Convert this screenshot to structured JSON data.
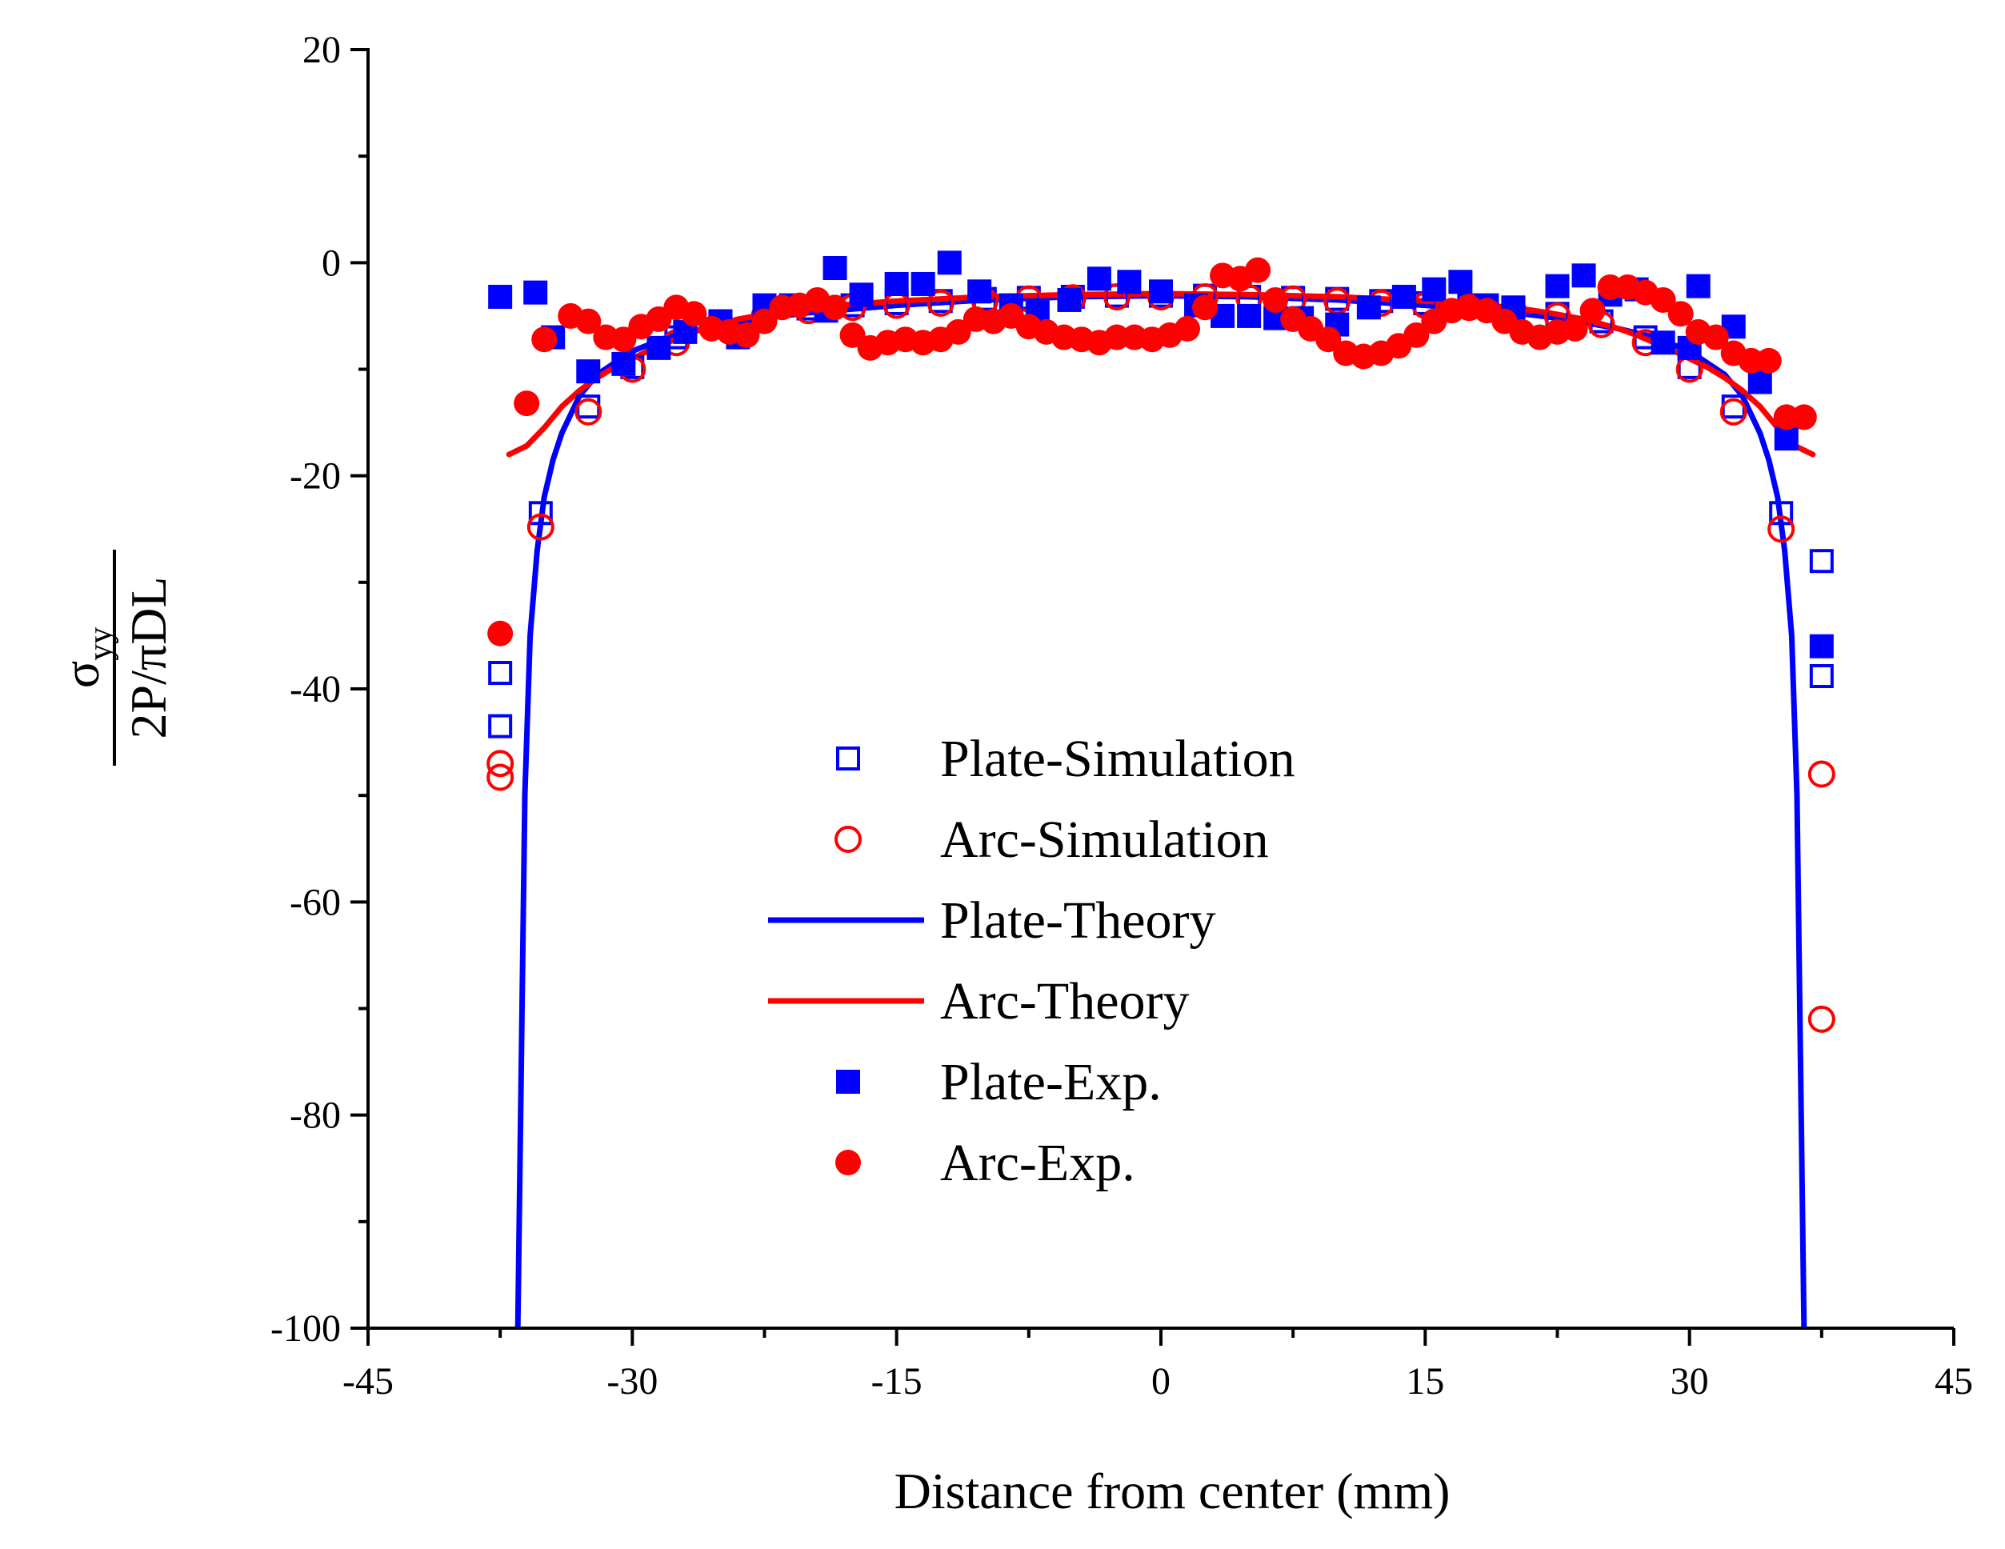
{
  "chart_data": {
    "type": "scatter",
    "title": "",
    "xlabel": "Distance from center (mm)",
    "ylabel": {
      "sigma": "σ",
      "sub": "yy",
      "denominator": "2P/πDL"
    },
    "xlim": [
      -45,
      45
    ],
    "ylim": [
      -100,
      20
    ],
    "xticks": [
      -45,
      -30,
      -15,
      0,
      15,
      30,
      45
    ],
    "yticks": [
      20,
      0,
      -20,
      -40,
      -60,
      -80,
      -100
    ],
    "xtick_labels": [
      "-45",
      "-30",
      "-15",
      "0",
      "15",
      "30",
      "45"
    ],
    "ytick_labels": [
      "20",
      "0",
      "-20",
      "-40",
      "-60",
      "-80",
      "-100"
    ],
    "legend_position": "center",
    "series": [
      {
        "name": "Plate-Simulation",
        "marker": "open-square",
        "color": "#0000ff",
        "x": [
          -37.5,
          -37.5,
          -35.2,
          -32.5,
          -30,
          -27.5,
          -25,
          -22.5,
          -20,
          -17.5,
          -15,
          -12.5,
          -10,
          -7.5,
          -5,
          -2.5,
          0,
          2.5,
          5,
          7.5,
          10,
          12.5,
          15,
          17.5,
          20,
          22.5,
          25,
          27.5,
          30,
          32.5,
          35.2,
          37.5,
          37.5
        ],
        "y": [
          -43.5,
          -38.5,
          -23.5,
          -13.5,
          -9.8,
          -7,
          -5.5,
          -4.8,
          -4.3,
          -4,
          -3.8,
          -3.6,
          -3.4,
          -3.3,
          -3.2,
          -3.1,
          -3.1,
          -3.1,
          -3.2,
          -3.3,
          -3.4,
          -3.6,
          -3.8,
          -4,
          -4.3,
          -4.8,
          -5.5,
          -7,
          -9.8,
          -13.5,
          -23.5,
          -38.8,
          -28
        ]
      },
      {
        "name": "Arc-Simulation",
        "marker": "open-circle",
        "color": "#ff0000",
        "x": [
          -37.5,
          -37.5,
          -35.2,
          -32.5,
          -30,
          -27.5,
          -25,
          -22.5,
          -20,
          -17.5,
          -15,
          -12.5,
          -10,
          -7.5,
          -5,
          -2.5,
          0,
          2.5,
          5,
          7.5,
          10,
          12.5,
          15,
          17.5,
          20,
          22.5,
          25,
          27.5,
          30,
          32.5,
          35.2,
          37.5,
          37.5
        ],
        "y": [
          -48.3,
          -47,
          -24.8,
          -14,
          -10,
          -7.5,
          -5.8,
          -5,
          -4.5,
          -4.2,
          -4,
          -3.8,
          -3.6,
          -3.4,
          -3.3,
          -3.2,
          -3.2,
          -3.2,
          -3.3,
          -3.4,
          -3.6,
          -3.8,
          -4,
          -4.2,
          -4.5,
          -5,
          -5.8,
          -7.5,
          -10,
          -14,
          -25,
          -48,
          -71
        ]
      },
      {
        "name": "Plate-Theory",
        "marker": "line",
        "color": "#0000ff",
        "x": [
          -36.5,
          -36.3,
          -36.1,
          -35.8,
          -35.4,
          -35,
          -34.5,
          -34,
          -33,
          -32,
          -30,
          -28,
          -26,
          -24,
          -22,
          -20,
          -15,
          -10,
          -5,
          0,
          5,
          10,
          15,
          20,
          22,
          24,
          26,
          28,
          30,
          32,
          33,
          34,
          34.5,
          35,
          35.4,
          35.8,
          36.1,
          36.3,
          36.5
        ],
        "y": [
          -100,
          -75,
          -50,
          -35,
          -27,
          -22,
          -18.5,
          -16,
          -12.5,
          -10.5,
          -8.3,
          -7,
          -6.2,
          -5.6,
          -5.1,
          -4.7,
          -4,
          -3.5,
          -3.2,
          -3.1,
          -3.2,
          -3.5,
          -4,
          -4.7,
          -5.1,
          -5.6,
          -6.2,
          -7,
          -8.3,
          -10.5,
          -12.5,
          -16,
          -18.5,
          -22,
          -27,
          -35,
          -50,
          -75,
          -100
        ]
      },
      {
        "name": "Arc-Theory",
        "marker": "line",
        "color": "#ff0000",
        "x": [
          -37,
          -36,
          -35,
          -34,
          -33,
          -32,
          -31,
          -30,
          -29,
          -28,
          -27,
          -26,
          -24,
          -22,
          -20,
          -15,
          -10,
          -5,
          0,
          5,
          10,
          15,
          20,
          22,
          24,
          26,
          27,
          28,
          29,
          30,
          31,
          32,
          33,
          34,
          35,
          36,
          37
        ],
        "y": [
          -18,
          -17.2,
          -15.5,
          -13.5,
          -12,
          -10.8,
          -9.8,
          -9,
          -8.2,
          -7.5,
          -6.8,
          -6.2,
          -5.3,
          -4.7,
          -4.2,
          -3.6,
          -3.2,
          -3,
          -2.9,
          -3,
          -3.2,
          -3.6,
          -4.2,
          -4.7,
          -5.3,
          -6.2,
          -6.8,
          -7.5,
          -8.2,
          -9,
          -9.8,
          -10.8,
          -12,
          -13.5,
          -15.5,
          -17.2,
          -18
        ]
      },
      {
        "name": "Plate-Exp.",
        "marker": "filled-square",
        "color": "#0000ff",
        "x": [
          -37.5,
          -35.5,
          -34.5,
          -32.5,
          -30.5,
          -28.5,
          -27,
          -25,
          -24,
          -22.5,
          -21,
          -19,
          -18.5,
          -17,
          -15,
          -13.5,
          -12,
          -10.3,
          -8.5,
          -7,
          -5.2,
          -3.5,
          -1.8,
          0,
          2,
          3.5,
          5,
          6.5,
          8,
          10,
          11.8,
          13.8,
          15.5,
          17,
          18.5,
          20,
          22.5,
          24,
          25.5,
          27,
          28.5,
          30,
          30.5,
          32.5,
          34,
          35.5,
          37.5
        ],
        "y": [
          -3.2,
          -2.8,
          -7,
          -10.2,
          -9.5,
          -8,
          -6.5,
          -5.5,
          -7,
          -4,
          -4,
          -4.5,
          -0.5,
          -3,
          -2,
          -2,
          0,
          -2.7,
          -4,
          -4.5,
          -3.5,
          -1.5,
          -1.8,
          -2.7,
          -4,
          -5,
          -5,
          -5.2,
          -5.2,
          -5.8,
          -4.2,
          -3.2,
          -2.5,
          -1.8,
          -4,
          -4.2,
          -2.2,
          -1.2,
          -3,
          -2.5,
          -7.5,
          -8,
          -2.2,
          -6,
          -11.2,
          -16.5,
          -36
        ]
      },
      {
        "name": "Arc-Exp.",
        "marker": "filled-circle",
        "color": "#ff0000",
        "x": [
          -37.5,
          -36,
          -35,
          -33.5,
          -32.5,
          -31.5,
          -30.5,
          -29.5,
          -28.5,
          -27.5,
          -26.5,
          -25.5,
          -24.5,
          -23.5,
          -22.5,
          -21.5,
          -20.5,
          -19.5,
          -18.5,
          -17.5,
          -16.5,
          -15.5,
          -14.5,
          -13.5,
          -12.5,
          -11.5,
          -10.5,
          -9.5,
          -8.5,
          -7.5,
          -6.5,
          -5.5,
          -4.5,
          -3.5,
          -2.5,
          -1.5,
          -0.5,
          0.5,
          1.5,
          2.5,
          3.5,
          4.5,
          5.5,
          6.5,
          7.5,
          8.5,
          9.5,
          10.5,
          11.5,
          12.5,
          13.5,
          14.5,
          15.5,
          16.5,
          17.5,
          18.5,
          19.5,
          20.5,
          21.5,
          22.5,
          23.5,
          24.5,
          25.5,
          26.5,
          27.5,
          28.5,
          29.5,
          30.5,
          31.5,
          32.5,
          33.5,
          34.5,
          35.5,
          36.5
        ],
        "y": [
          -34.8,
          -13.2,
          -7.2,
          -5,
          -5.5,
          -7,
          -7.2,
          -6,
          -5.3,
          -4.2,
          -4.8,
          -6.2,
          -6.5,
          -6.8,
          -5.5,
          -4.2,
          -4,
          -3.5,
          -4.2,
          -6.8,
          -8,
          -7.5,
          -7.2,
          -7.5,
          -7.2,
          -6.5,
          -5.3,
          -5.5,
          -5,
          -6,
          -6.5,
          -7,
          -7.2,
          -7.5,
          -7,
          -7,
          -7.2,
          -6.8,
          -6.2,
          -4.2,
          -1.2,
          -1.5,
          -0.7,
          -3.5,
          -5.3,
          -6.2,
          -7.2,
          -8.5,
          -8.8,
          -8.5,
          -7.8,
          -6.8,
          -5.5,
          -4.5,
          -4.2,
          -4.5,
          -5.5,
          -6.5,
          -7,
          -6.5,
          -6.2,
          -4.5,
          -2.3,
          -2.3,
          -2.8,
          -3.5,
          -4.8,
          -6.5,
          -7,
          -8.5,
          -9.2,
          -9.2,
          -14.5,
          -14.5
        ]
      }
    ]
  }
}
